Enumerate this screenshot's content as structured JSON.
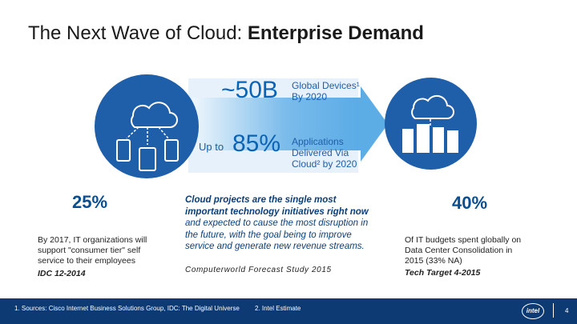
{
  "title": {
    "regular": "The Next Wave of Cloud: ",
    "bold": "Enterprise Demand"
  },
  "infographic": {
    "devices_value": "~50B",
    "devices_label_line1": "Global Devices¹",
    "devices_label_line2": "By 2020",
    "upto": "Up to",
    "apps_value": "85%",
    "apps_label_line1": "Applications",
    "apps_label_line2": "Delivered Via",
    "apps_label_line3": "Cloud² by 2020"
  },
  "left_stat": {
    "value": "25%",
    "description": "By 2017, IT organizations will support \"consumer tier\" self service to their employees",
    "citation": "IDC 12-2014"
  },
  "center_quote": {
    "bold_text": "Cloud projects are the single most important technology initiatives right now",
    "rest_text": " and expected to cause the most disruption in the future, with the goal being to improve service and generate new revenue streams.",
    "citation": "Computerworld Forecast Study 2015"
  },
  "right_stat": {
    "value": "40%",
    "description": "Of IT budgets spent globally on Data Center Consolidation in 2015 (33% NA)",
    "citation": "Tech Target 4-2015"
  },
  "footer": {
    "footnote1": "1. Sources: Cisco Internet Business Solutions Group, IDC: The Digital Universe",
    "footnote2": "2. Intel Estimate",
    "logo": "intel",
    "page_number": "4"
  },
  "icons": [
    "cloud-devices-icon",
    "cloud-datacenter-icon",
    "arrow-icon"
  ],
  "colors": {
    "primary": "#1f5ea8",
    "accent": "#0a63b5",
    "arrow": "#4aa3e3",
    "footer": "#0d3a73"
  }
}
